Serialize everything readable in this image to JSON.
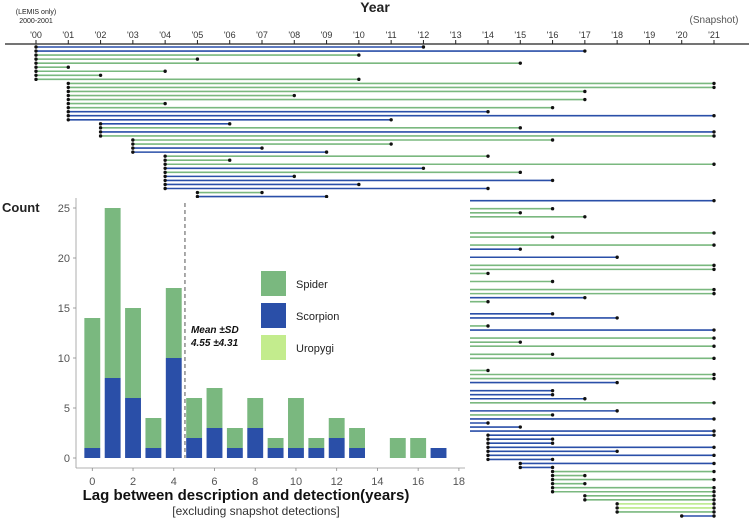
{
  "chart_data": [
    {
      "type": "timeline",
      "title": "Year",
      "note_lines": [
        "(LEMIS only)",
        "2000-2001"
      ],
      "snapshot_label": "(Snapshot)",
      "x_tick_labels": [
        "'00",
        "'01",
        "'02",
        "'03",
        "'04",
        "'05",
        "'06",
        "'07",
        "'08",
        "'09",
        "'10",
        "'11",
        "'12",
        "'13",
        "'14",
        "'15",
        "'16",
        "'17",
        "'18",
        "'19",
        "'20",
        "'21"
      ],
      "xlim": [
        2000,
        2021
      ],
      "series_colors": {
        "spider": "#7ab87f",
        "scorpion": "#2a4fa8",
        "uropygi": "#b8e986"
      },
      "segments": [
        {
          "start": 2000,
          "end": 2012,
          "taxon": "scorpion"
        },
        {
          "start": 2000,
          "end": 2017,
          "taxon": "scorpion"
        },
        {
          "start": 2000,
          "end": 2010,
          "taxon": "spider"
        },
        {
          "start": 2000,
          "end": 2005,
          "taxon": "spider"
        },
        {
          "start": 2000,
          "end": 2015,
          "taxon": "spider"
        },
        {
          "start": 2000,
          "end": 2001,
          "taxon": "spider"
        },
        {
          "start": 2000,
          "end": 2004,
          "taxon": "spider"
        },
        {
          "start": 2000,
          "end": 2002,
          "taxon": "spider"
        },
        {
          "start": 2000,
          "end": 2010,
          "taxon": "spider"
        },
        {
          "start": 2001,
          "end": 2021,
          "taxon": "spider"
        },
        {
          "start": 2001,
          "end": 2021,
          "taxon": "spider"
        },
        {
          "start": 2001,
          "end": 2017,
          "taxon": "spider"
        },
        {
          "start": 2001,
          "end": 2008,
          "taxon": "spider"
        },
        {
          "start": 2001,
          "end": 2017,
          "taxon": "spider"
        },
        {
          "start": 2001,
          "end": 2004,
          "taxon": "spider"
        },
        {
          "start": 2001,
          "end": 2016,
          "taxon": "spider"
        },
        {
          "start": 2001,
          "end": 2014,
          "taxon": "scorpion"
        },
        {
          "start": 2001,
          "end": 2021,
          "taxon": "scorpion"
        },
        {
          "start": 2001,
          "end": 2011,
          "taxon": "scorpion"
        },
        {
          "start": 2002,
          "end": 2006,
          "taxon": "scorpion"
        },
        {
          "start": 2002,
          "end": 2015,
          "taxon": "spider"
        },
        {
          "start": 2002,
          "end": 2021,
          "taxon": "scorpion"
        },
        {
          "start": 2002,
          "end": 2021,
          "taxon": "spider"
        },
        {
          "start": 2003,
          "end": 2016,
          "taxon": "spider"
        },
        {
          "start": 2003,
          "end": 2011,
          "taxon": "spider"
        },
        {
          "start": 2003,
          "end": 2007,
          "taxon": "scorpion"
        },
        {
          "start": 2003,
          "end": 2009,
          "taxon": "scorpion"
        },
        {
          "start": 2004,
          "end": 2014,
          "taxon": "spider"
        },
        {
          "start": 2004,
          "end": 2006,
          "taxon": "spider"
        },
        {
          "start": 2004,
          "end": 2021,
          "taxon": "spider"
        },
        {
          "start": 2004,
          "end": 2012,
          "taxon": "scorpion"
        },
        {
          "start": 2004,
          "end": 2015,
          "taxon": "spider"
        },
        {
          "start": 2004,
          "end": 2008,
          "taxon": "scorpion"
        },
        {
          "start": 2004,
          "end": 2016,
          "taxon": "scorpion"
        },
        {
          "start": 2004,
          "end": 2010,
          "taxon": "scorpion"
        },
        {
          "start": 2004,
          "end": 2014,
          "taxon": "scorpion"
        },
        {
          "start": 2005,
          "end": 2007,
          "taxon": "spider"
        },
        {
          "start": 2005,
          "end": 2009,
          "taxon": "scorpion"
        },
        {
          "start": 2005,
          "end": 2021,
          "taxon": "scorpion"
        },
        {
          "start": 2005,
          "end": 2007,
          "taxon": "spider"
        },
        {
          "start": 2005,
          "end": 2016,
          "taxon": "spider"
        },
        {
          "start": 2005,
          "end": 2015,
          "taxon": "spider"
        },
        {
          "start": 2005,
          "end": 2017,
          "taxon": "spider"
        },
        {
          "start": 2005,
          "end": 2009,
          "taxon": "spider"
        },
        {
          "start": 2005,
          "end": 2009,
          "taxon": "scorpion"
        },
        {
          "start": 2005,
          "end": 2007,
          "taxon": "spider"
        },
        {
          "start": 2006,
          "end": 2021,
          "taxon": "spider"
        },
        {
          "start": 2006,
          "end": 2016,
          "taxon": "spider"
        },
        {
          "start": 2006,
          "end": 2008,
          "taxon": "spider"
        },
        {
          "start": 2006,
          "end": 2021,
          "taxon": "spider"
        },
        {
          "start": 2006,
          "end": 2015,
          "taxon": "scorpion"
        },
        {
          "start": 2006,
          "end": 2007,
          "taxon": "spider"
        },
        {
          "start": 2006,
          "end": 2018,
          "taxon": "scorpion"
        },
        {
          "start": 2006,
          "end": 2012,
          "taxon": "spider"
        },
        {
          "start": 2007,
          "end": 2021,
          "taxon": "spider"
        },
        {
          "start": 2007,
          "end": 2021,
          "taxon": "spider"
        },
        {
          "start": 2008,
          "end": 2014,
          "taxon": "spider"
        },
        {
          "start": 2008,
          "end": 2010,
          "taxon": "spider"
        },
        {
          "start": 2008,
          "end": 2016,
          "taxon": "spider"
        },
        {
          "start": 2008,
          "end": 2012,
          "taxon": "spider"
        },
        {
          "start": 2008,
          "end": 2021,
          "taxon": "spider"
        },
        {
          "start": 2008,
          "end": 2021,
          "taxon": "spider"
        },
        {
          "start": 2009,
          "end": 2017,
          "taxon": "scorpion"
        },
        {
          "start": 2009,
          "end": 2014,
          "taxon": "spider"
        },
        {
          "start": 2010,
          "end": 2011,
          "taxon": "spider"
        },
        {
          "start": 2010,
          "end": 2013,
          "taxon": "spider"
        },
        {
          "start": 2010,
          "end": 2016,
          "taxon": "scorpion"
        },
        {
          "start": 2010,
          "end": 2018,
          "taxon": "scorpion"
        },
        {
          "start": 2010,
          "end": 2012,
          "taxon": "spider"
        },
        {
          "start": 2010,
          "end": 2014,
          "taxon": "spider"
        },
        {
          "start": 2010,
          "end": 2021,
          "taxon": "scorpion"
        },
        {
          "start": 2010,
          "end": 2013,
          "taxon": "spider"
        },
        {
          "start": 2010,
          "end": 2021,
          "taxon": "spider"
        },
        {
          "start": 2010,
          "end": 2015,
          "taxon": "spider"
        },
        {
          "start": 2010,
          "end": 2021,
          "taxon": "spider"
        },
        {
          "start": 2010,
          "end": 2011,
          "taxon": "spider"
        },
        {
          "start": 2010,
          "end": 2016,
          "taxon": "spider"
        },
        {
          "start": 2010,
          "end": 2021,
          "taxon": "spider"
        },
        {
          "start": 2011,
          "end": 2013,
          "taxon": "spider"
        },
        {
          "start": 2011,
          "end": 2012,
          "taxon": "spider"
        },
        {
          "start": 2011,
          "end": 2014,
          "taxon": "spider"
        },
        {
          "start": 2011,
          "end": 2021,
          "taxon": "spider"
        },
        {
          "start": 2011,
          "end": 2021,
          "taxon": "spider"
        },
        {
          "start": 2012,
          "end": 2018,
          "taxon": "scorpion"
        },
        {
          "start": 2012,
          "end": 2013,
          "taxon": "scorpion"
        },
        {
          "start": 2012,
          "end": 2016,
          "taxon": "scorpion"
        },
        {
          "start": 2012,
          "end": 2016,
          "taxon": "scorpion"
        },
        {
          "start": 2012,
          "end": 2017,
          "taxon": "scorpion"
        },
        {
          "start": 2012,
          "end": 2021,
          "taxon": "spider"
        },
        {
          "start": 2012,
          "end": 2013,
          "taxon": "scorpion"
        },
        {
          "start": 2012,
          "end": 2018,
          "taxon": "scorpion"
        },
        {
          "start": 2012,
          "end": 2016,
          "taxon": "spider"
        },
        {
          "start": 2013,
          "end": 2021,
          "taxon": "scorpion"
        },
        {
          "start": 2013,
          "end": 2014,
          "taxon": "scorpion"
        },
        {
          "start": 2013,
          "end": 2015,
          "taxon": "scorpion"
        },
        {
          "start": 2013,
          "end": 2021,
          "taxon": "scorpion"
        },
        {
          "start": 2014,
          "end": 2021,
          "taxon": "scorpion"
        },
        {
          "start": 2014,
          "end": 2016,
          "taxon": "scorpion"
        },
        {
          "start": 2014,
          "end": 2016,
          "taxon": "scorpion"
        },
        {
          "start": 2014,
          "end": 2021,
          "taxon": "scorpion"
        },
        {
          "start": 2014,
          "end": 2018,
          "taxon": "scorpion"
        },
        {
          "start": 2014,
          "end": 2021,
          "taxon": "scorpion"
        },
        {
          "start": 2014,
          "end": 2016,
          "taxon": "scorpion"
        },
        {
          "start": 2015,
          "end": 2021,
          "taxon": "scorpion"
        },
        {
          "start": 2015,
          "end": 2016,
          "taxon": "scorpion"
        },
        {
          "start": 2016,
          "end": 2021,
          "taxon": "spider"
        },
        {
          "start": 2016,
          "end": 2017,
          "taxon": "spider"
        },
        {
          "start": 2016,
          "end": 2021,
          "taxon": "spider"
        },
        {
          "start": 2016,
          "end": 2017,
          "taxon": "spider"
        },
        {
          "start": 2016,
          "end": 2021,
          "taxon": "spider"
        },
        {
          "start": 2016,
          "end": 2021,
          "taxon": "spider"
        },
        {
          "start": 2017,
          "end": 2021,
          "taxon": "spider"
        },
        {
          "start": 2017,
          "end": 2021,
          "taxon": "spider"
        },
        {
          "start": 2018,
          "end": 2021,
          "taxon": "uropygi"
        },
        {
          "start": 2018,
          "end": 2021,
          "taxon": "uropygi"
        },
        {
          "start": 2018,
          "end": 2021,
          "taxon": "spider"
        },
        {
          "start": 2020,
          "end": 2021,
          "taxon": "scorpion"
        }
      ]
    },
    {
      "type": "bar",
      "stacked": true,
      "ylabel": "Count",
      "xlabel": "Lag between description and detection(years)",
      "xlabel_sub": "[excluding snapshot detections]",
      "x_ticks": [
        0,
        2,
        4,
        6,
        8,
        10,
        12,
        14,
        16,
        18
      ],
      "y_ticks": [
        0,
        5,
        10,
        15,
        20,
        25
      ],
      "ylim": [
        0,
        26
      ],
      "xlim": [
        -0.8,
        18.3
      ],
      "categories": [
        0,
        1,
        2,
        3,
        4,
        5,
        6,
        7,
        8,
        9,
        10,
        11,
        12,
        13,
        14,
        15,
        16,
        17
      ],
      "series": [
        {
          "name": "Scorpion",
          "color": "#2a4fa8",
          "values": [
            1,
            8,
            6,
            1,
            10,
            2,
            3,
            1,
            3,
            1,
            1,
            1,
            2,
            1,
            0,
            0,
            0,
            1
          ]
        },
        {
          "name": "Spider",
          "color": "#7ab87f",
          "values": [
            13,
            17,
            9,
            3,
            7,
            4,
            4,
            2,
            3,
            1,
            5,
            1,
            2,
            2,
            0,
            2,
            2,
            0
          ]
        },
        {
          "name": "Uropygi",
          "color": "#c3ec8d",
          "values": [
            0,
            0,
            0,
            0,
            0,
            0,
            0,
            0,
            0,
            0,
            0,
            0,
            0,
            0,
            0,
            0,
            0,
            0
          ]
        }
      ],
      "legend": [
        {
          "label": "Spider",
          "color": "#7ab87f"
        },
        {
          "label": "Scorpion",
          "color": "#2a4fa8"
        },
        {
          "label": "Uropygi",
          "color": "#c3ec8d"
        }
      ],
      "mean_line": {
        "value": 4.55,
        "label_lines": [
          "Mean ±SD",
          "4.55 ±4.31"
        ]
      }
    }
  ]
}
